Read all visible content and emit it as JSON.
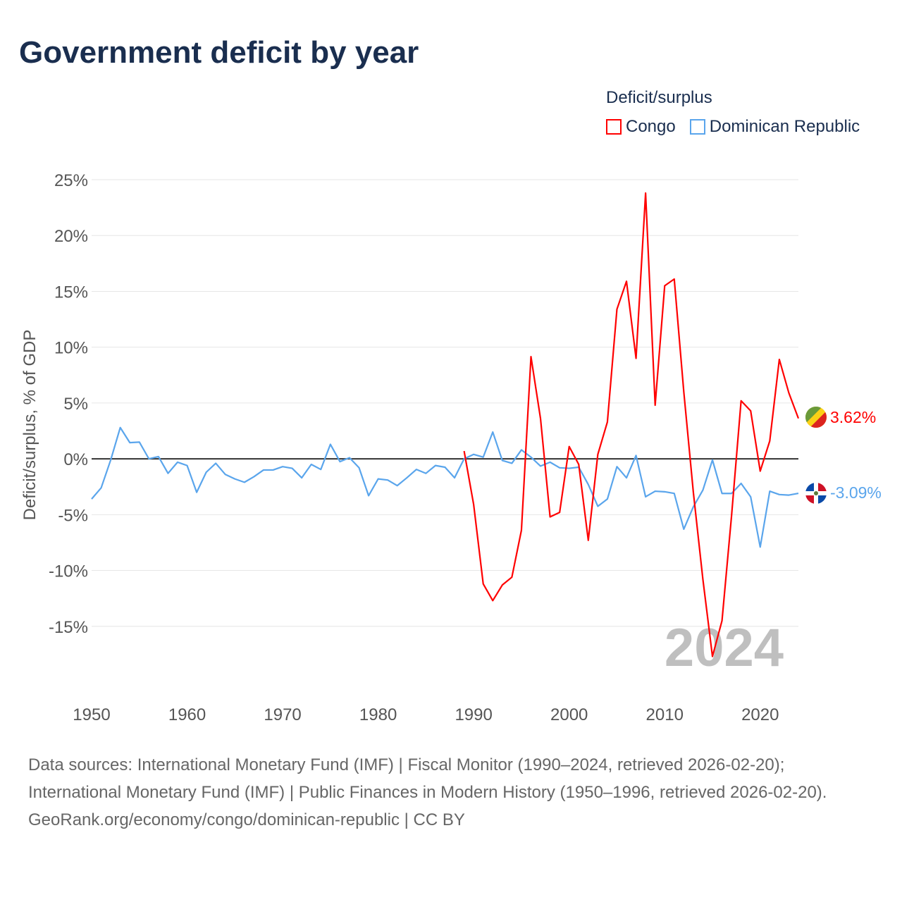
{
  "title": "Government deficit by year",
  "legend": {
    "title": "Deficit/surplus",
    "items": [
      {
        "label": "Congo",
        "color": "#ff0000"
      },
      {
        "label": "Dominican Republic",
        "color": "#5aa5ec"
      }
    ]
  },
  "chart_data": {
    "type": "line",
    "title": "Government deficit by year",
    "xlabel": "",
    "ylabel": "Deficit/surplus, % of GDP",
    "xlim": [
      1950,
      2024
    ],
    "ylim": [
      -20,
      25
    ],
    "x_ticks": [
      1950,
      1960,
      1970,
      1980,
      1990,
      2000,
      2010,
      2020
    ],
    "y_ticks": [
      25,
      20,
      15,
      10,
      5,
      0,
      -5,
      -10,
      -15
    ],
    "y_tick_labels": [
      "25%",
      "20%",
      "15%",
      "10%",
      "5%",
      "0%",
      "-5%",
      "-10%",
      "-15%"
    ],
    "grid": true,
    "legend_position": "top-right",
    "watermark_year": "2024",
    "series": [
      {
        "name": "Congo",
        "color": "#ff0000",
        "end_label": "3.62%",
        "x": [
          1989,
          1990,
          1991,
          1992,
          1993,
          1994,
          1995,
          1996,
          1997,
          1998,
          1999,
          2000,
          2001,
          2002,
          2003,
          2004,
          2005,
          2006,
          2007,
          2008,
          2009,
          2010,
          2011,
          2012,
          2013,
          2014,
          2015,
          2016,
          2017,
          2018,
          2019,
          2020,
          2021,
          2022,
          2023,
          2024
        ],
        "values": [
          0.7,
          -4.1,
          -11.2,
          -12.7,
          -11.3,
          -10.6,
          -6.4,
          9.15,
          3.6,
          -5.2,
          -4.8,
          1.1,
          -0.5,
          -7.3,
          0.4,
          3.3,
          13.4,
          15.9,
          9.0,
          23.8,
          4.8,
          15.5,
          16.1,
          6.0,
          -3.0,
          -10.8,
          -17.7,
          -14.5,
          -5.1,
          5.2,
          4.3,
          -1.1,
          1.6,
          8.9,
          5.9,
          3.62
        ]
      },
      {
        "name": "Dominican Republic",
        "color": "#5aa5ec",
        "end_label": "-3.09%",
        "x": [
          1950,
          1951,
          1952,
          1953,
          1954,
          1955,
          1956,
          1957,
          1958,
          1959,
          1960,
          1961,
          1962,
          1963,
          1964,
          1965,
          1966,
          1967,
          1968,
          1969,
          1970,
          1971,
          1972,
          1973,
          1974,
          1975,
          1976,
          1977,
          1978,
          1979,
          1980,
          1981,
          1982,
          1983,
          1984,
          1985,
          1986,
          1987,
          1988,
          1989,
          1990,
          1991,
          1992,
          1993,
          1994,
          1995,
          1996,
          1997,
          1998,
          1999,
          2000,
          2001,
          2002,
          2003,
          2004,
          2005,
          2006,
          2007,
          2008,
          2009,
          2010,
          2011,
          2012,
          2013,
          2014,
          2015,
          2016,
          2017,
          2018,
          2019,
          2020,
          2021,
          2022,
          2023,
          2024
        ],
        "values": [
          -3.6,
          -2.6,
          -0.1,
          2.8,
          1.45,
          1.5,
          0,
          0.2,
          -1.3,
          -0.3,
          -0.6,
          -3.0,
          -1.2,
          -0.4,
          -1.4,
          -1.8,
          -2.1,
          -1.6,
          -1.0,
          -1.0,
          -0.7,
          -0.85,
          -1.7,
          -0.5,
          -0.95,
          1.3,
          -0.25,
          0.1,
          -0.8,
          -3.3,
          -1.8,
          -1.9,
          -2.4,
          -1.7,
          -0.95,
          -1.3,
          -0.6,
          -0.75,
          -1.7,
          0,
          0.4,
          0.15,
          2.4,
          -0.15,
          -0.4,
          0.8,
          0.15,
          -0.65,
          -0.3,
          -0.8,
          -0.85,
          -0.75,
          -2.3,
          -4.25,
          -3.6,
          -0.7,
          -1.7,
          0.3,
          -3.4,
          -2.9,
          -2.95,
          -3.1,
          -6.3,
          -4.3,
          -2.8,
          -0.1,
          -3.1,
          -3.1,
          -2.2,
          -3.4,
          -7.9,
          -2.9,
          -3.2,
          -3.25,
          -3.09
        ]
      }
    ]
  },
  "footer": {
    "sources": "Data sources: International Monetary Fund (IMF) | Fiscal Monitor (1990–2024, retrieved 2026-02-20); International Monetary Fund (IMF) | Public Finances in Modern History (1950–1996, retrieved 2026-02-20).",
    "link": "GeoRank.org/economy/congo/dominican-republic",
    "license": " | CC BY"
  }
}
